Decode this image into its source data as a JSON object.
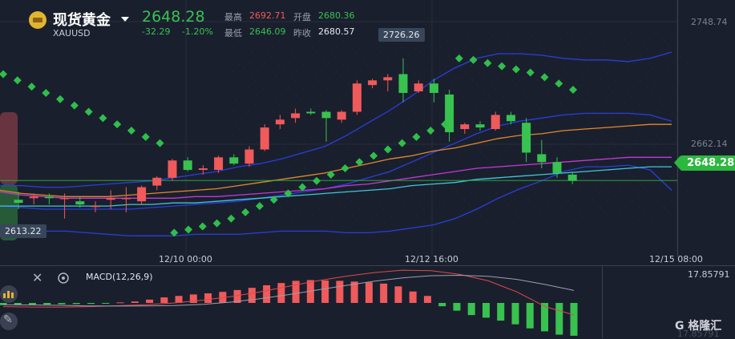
{
  "instrument": {
    "name": "现货黄金",
    "symbol": "XAUUSD",
    "price": "2648.28",
    "change": "-32.29",
    "change_pct": "-1.20%"
  },
  "stats": [
    {
      "label": "最高",
      "value": "2692.71",
      "color": "#f05a5a"
    },
    {
      "label": "开盘",
      "value": "2680.36",
      "color": "#38c24f"
    },
    {
      "label": "最低",
      "value": "2646.09",
      "color": "#38c24f"
    },
    {
      "label": "昨收",
      "value": "2680.57",
      "color": "#e6e8ee"
    }
  ],
  "tags": {
    "high_tag": "2726.26",
    "low_tag": "2613.22",
    "last_price": "2648.28",
    "axis_top": "2748.74",
    "axis_mid": "2662.14"
  },
  "time_labels": [
    "12/10 00:00",
    "12/12 16:00",
    "12/15 08:00"
  ],
  "macd": {
    "label": "MACD(12,26,9)",
    "axis_top": "17.85791",
    "axis_bottom": "17.85791"
  },
  "brand": "格隆汇",
  "colors": {
    "up": "#f05a5a",
    "down": "#38c24f",
    "bg": "#1a1f2e"
  },
  "chart_data": {
    "type": "candlestick",
    "ylim": [
      2605,
      2755
    ],
    "candles": [
      {
        "o": 2636,
        "h": 2641,
        "l": 2630,
        "c": 2634
      },
      {
        "o": 2637,
        "h": 2640,
        "l": 2633,
        "c": 2638
      },
      {
        "o": 2638,
        "h": 2640,
        "l": 2633,
        "c": 2637
      },
      {
        "o": 2637,
        "h": 2640,
        "l": 2624,
        "c": 2637
      },
      {
        "o": 2635,
        "h": 2638,
        "l": 2631,
        "c": 2633
      },
      {
        "o": 2632,
        "h": 2635,
        "l": 2628,
        "c": 2632
      },
      {
        "o": 2636,
        "h": 2642,
        "l": 2630,
        "c": 2637
      },
      {
        "o": 2637,
        "h": 2644,
        "l": 2628,
        "c": 2637
      },
      {
        "o": 2635,
        "h": 2645,
        "l": 2633,
        "c": 2644
      },
      {
        "o": 2645,
        "h": 2651,
        "l": 2642,
        "c": 2650
      },
      {
        "o": 2650,
        "h": 2662,
        "l": 2648,
        "c": 2661
      },
      {
        "o": 2661,
        "h": 2663,
        "l": 2654,
        "c": 2655
      },
      {
        "o": 2655,
        "h": 2658,
        "l": 2652,
        "c": 2656
      },
      {
        "o": 2655,
        "h": 2664,
        "l": 2653,
        "c": 2663
      },
      {
        "o": 2663,
        "h": 2665,
        "l": 2658,
        "c": 2659
      },
      {
        "o": 2659,
        "h": 2670,
        "l": 2657,
        "c": 2668
      },
      {
        "o": 2668,
        "h": 2684,
        "l": 2667,
        "c": 2682
      },
      {
        "o": 2684,
        "h": 2690,
        "l": 2681,
        "c": 2687
      },
      {
        "o": 2688,
        "h": 2694,
        "l": 2685,
        "c": 2691
      },
      {
        "o": 2692,
        "h": 2694,
        "l": 2690,
        "c": 2691
      },
      {
        "o": 2692,
        "h": 2693,
        "l": 2673,
        "c": 2688
      },
      {
        "o": 2687,
        "h": 2693,
        "l": 2685,
        "c": 2692
      },
      {
        "o": 2692,
        "h": 2712,
        "l": 2690,
        "c": 2710
      },
      {
        "o": 2709,
        "h": 2713,
        "l": 2707,
        "c": 2712
      },
      {
        "o": 2712,
        "h": 2716,
        "l": 2705,
        "c": 2714
      },
      {
        "o": 2716,
        "h": 2726,
        "l": 2698,
        "c": 2704
      },
      {
        "o": 2705,
        "h": 2712,
        "l": 2704,
        "c": 2710
      },
      {
        "o": 2710,
        "h": 2713,
        "l": 2698,
        "c": 2704
      },
      {
        "o": 2703,
        "h": 2706,
        "l": 2673,
        "c": 2679
      },
      {
        "o": 2681,
        "h": 2685,
        "l": 2678,
        "c": 2684
      },
      {
        "o": 2684,
        "h": 2686,
        "l": 2680,
        "c": 2682
      },
      {
        "o": 2681,
        "h": 2692,
        "l": 2680,
        "c": 2690
      },
      {
        "o": 2690,
        "h": 2692,
        "l": 2684,
        "c": 2686
      },
      {
        "o": 2685,
        "h": 2688,
        "l": 2660,
        "c": 2666
      },
      {
        "o": 2665,
        "h": 2674,
        "l": 2656,
        "c": 2660
      },
      {
        "o": 2660,
        "h": 2663,
        "l": 2650,
        "c": 2653
      },
      {
        "o": 2652,
        "h": 2654,
        "l": 2646,
        "c": 2648
      }
    ],
    "psar": [
      2716,
      2712,
      2708,
      2704,
      2700,
      2696,
      2692,
      2688,
      2684,
      2680,
      2676,
      2672,
      2615,
      2617,
      2619,
      2621,
      2624,
      2628,
      2632,
      2636,
      2640,
      2644,
      2648,
      2652,
      2656,
      2660,
      2664,
      2668,
      2672,
      2676,
      2680,
      2684,
      2726,
      2725,
      2723,
      2721,
      2719,
      2717,
      2714,
      2710,
      2706
    ],
    "macd_hist": [
      -1.2,
      -1.2,
      -1.0,
      -0.9,
      -0.7,
      -0.6,
      -0.5,
      -0.4,
      0.3,
      0.8,
      1.8,
      3.0,
      3.8,
      4.6,
      5.2,
      6.0,
      7.0,
      8.2,
      9.6,
      10.8,
      12.0,
      12.4,
      12.2,
      12.0,
      11.6,
      11.2,
      10.5,
      9.0,
      6.2,
      3.8,
      -1.8,
      -4.2,
      -6.6,
      -8.0,
      -9.6,
      -11.6,
      -13.8,
      -15.4,
      -17.2,
      -17.8
    ],
    "macd_line": [
      -2.0,
      -2.2,
      -2.3,
      -2.0,
      -1.5,
      -1.0,
      0.0,
      1.5,
      3.5,
      6.0,
      9.0,
      12.0,
      14.5,
      16.5,
      17.8,
      17.5,
      15.5,
      12.0,
      6.0,
      -2.0,
      -6.5
    ],
    "signal_line": [
      -1.0,
      -1.1,
      -1.3,
      -1.6,
      -1.7,
      -1.6,
      -1.4,
      -0.8,
      0.5,
      2.3,
      4.5,
      7.0,
      9.5,
      11.8,
      13.6,
      14.8,
      15.0,
      14.5,
      12.8,
      10.0,
      6.8
    ],
    "bb_upper": [
      2645,
      2645,
      2644,
      2644,
      2645,
      2646,
      2647,
      2648,
      2650,
      2652,
      2654,
      2657,
      2659,
      2662,
      2666,
      2670,
      2677,
      2685,
      2693,
      2702,
      2712,
      2720,
      2726,
      2729,
      2729,
      2728,
      2726,
      2725,
      2725,
      2724,
      2726,
      2730
    ],
    "bb_mid": [
      2632,
      2631,
      2630,
      2630,
      2630,
      2630,
      2630,
      2631,
      2632,
      2633,
      2634,
      2635,
      2637,
      2639,
      2641,
      2643,
      2646,
      2650,
      2654,
      2660,
      2666,
      2672,
      2678,
      2683,
      2686,
      2688,
      2690,
      2691,
      2691,
      2691,
      2690,
      2686
    ],
    "bb_lower": [
      2619,
      2618,
      2616,
      2616,
      2615,
      2614,
      2613,
      2613,
      2613,
      2614,
      2614,
      2614,
      2615,
      2616,
      2616,
      2616,
      2615,
      2615,
      2616,
      2618,
      2620,
      2624,
      2630,
      2637,
      2643,
      2648,
      2654,
      2657,
      2657,
      2658,
      2655,
      2642
    ],
    "ma_orange": [
      2642,
      2640,
      2639,
      2638,
      2638,
      2638,
      2639,
      2640,
      2641,
      2642,
      2643,
      2645,
      2647,
      2649,
      2651,
      2653,
      2656,
      2659,
      2662,
      2664,
      2667,
      2669,
      2672,
      2675,
      2677,
      2678,
      2680,
      2681,
      2682,
      2683,
      2684,
      2684
    ],
    "ma_magenta": [
      2641,
      2639,
      2638,
      2637,
      2637,
      2637,
      2637,
      2637,
      2637,
      2638,
      2638,
      2639,
      2640,
      2641,
      2642,
      2643,
      2645,
      2646,
      2648,
      2650,
      2652,
      2654,
      2656,
      2657,
      2658,
      2659,
      2660,
      2661,
      2662,
      2663,
      2663,
      2663
    ],
    "ma_cyan": [
      2632,
      2632,
      2632,
      2632,
      2632,
      2632,
      2633,
      2633,
      2634,
      2634,
      2635,
      2636,
      2637,
      2638,
      2639,
      2640,
      2641,
      2642,
      2643,
      2645,
      2646,
      2647,
      2649,
      2650,
      2651,
      2652,
      2653,
      2654,
      2655,
      2656,
      2657,
      2657
    ]
  }
}
